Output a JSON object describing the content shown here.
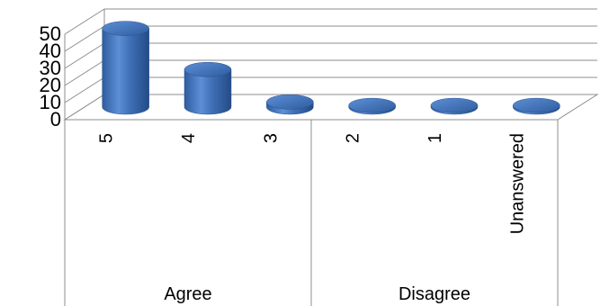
{
  "chart_data": {
    "type": "bar",
    "style": "3d-cylinder",
    "categories": [
      "5",
      "4",
      "3",
      "2",
      "1",
      "Unanswered"
    ],
    "values": [
      46,
      22,
      3,
      1,
      1,
      1
    ],
    "groups": [
      {
        "label": "Agree",
        "categories": [
          "5",
          "4",
          "3"
        ]
      },
      {
        "label": "Disagree",
        "categories": [
          "2",
          "1",
          "Unanswered"
        ]
      }
    ],
    "title": "",
    "xlabel": "",
    "ylabel": "",
    "ylim": [
      0,
      50
    ],
    "yticks": [
      "0",
      "10",
      "20",
      "30",
      "40",
      "50"
    ],
    "grid": true,
    "legend": "none",
    "bar_color": "#3f6fb6"
  }
}
